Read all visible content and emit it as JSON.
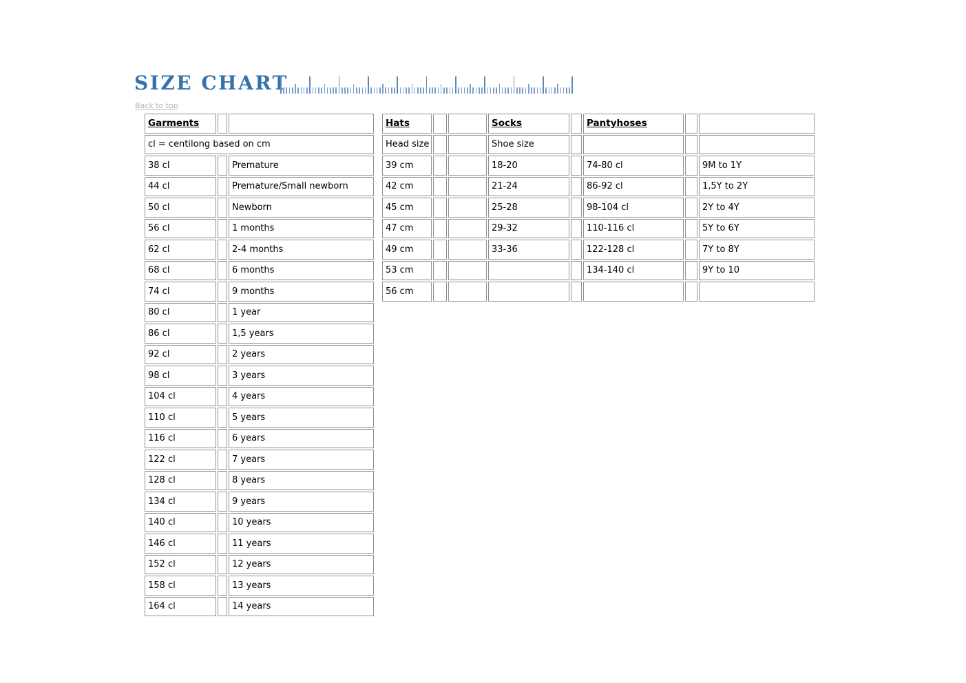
{
  "page": {
    "title": "SIZE CHART",
    "back_link": "Back to top"
  },
  "colors": {
    "title_blue": "#3572ad",
    "ruler_blue": "#7b9ecb",
    "ruler_blue_dark": "#5e87be",
    "table_border_gray": "#919191",
    "link_gray": "#b5b5b5",
    "text_black": "#000000"
  },
  "garments": {
    "header": "Garments",
    "note": "cl = centilong based on cm",
    "rows": [
      {
        "size": "38 cl",
        "label": "Premature"
      },
      {
        "size": "44 cl",
        "label": "Premature/Small newborn"
      },
      {
        "size": "50 cl",
        "label": "Newborn"
      },
      {
        "size": "56 cl",
        "label": "1 months"
      },
      {
        "size": "62 cl",
        "label": "2-4 months"
      },
      {
        "size": "68 cl",
        "label": "6 months"
      },
      {
        "size": "74 cl",
        "label": "9 months"
      },
      {
        "size": "80 cl",
        "label": "1 year"
      },
      {
        "size": "86 cl",
        "label": "1,5 years"
      },
      {
        "size": "92 cl",
        "label": "2 years"
      },
      {
        "size": "98 cl",
        "label": "3 years"
      },
      {
        "size": "104 cl",
        "label": "4 years"
      },
      {
        "size": "110 cl",
        "label": "5 years"
      },
      {
        "size": "116 cl",
        "label": "6 years"
      },
      {
        "size": "122 cl",
        "label": "7 years"
      },
      {
        "size": "128 cl",
        "label": "8 years"
      },
      {
        "size": "134 cl",
        "label": "9 years"
      },
      {
        "size": "140 cl",
        "label": "10 years"
      },
      {
        "size": "146 cl",
        "label": "11 years"
      },
      {
        "size": "152 cl",
        "label": "12 years"
      },
      {
        "size": "158 cl",
        "label": "13 years"
      },
      {
        "size": "164 cl",
        "label": "14 years"
      }
    ]
  },
  "accessories": {
    "hats": {
      "header": "Hats",
      "subheader": "Head size"
    },
    "socks": {
      "header": "Socks",
      "subheader": "Shoe size"
    },
    "pantyhoses": {
      "header": "Pantyhoses",
      "subheader": ""
    },
    "rows": [
      {
        "hats": "39 cm",
        "socks": "18-20",
        "pantyhose": "74-80 cl",
        "age": "9M to 1Y"
      },
      {
        "hats": "42 cm",
        "socks": "21-24",
        "pantyhose": "86-92 cl",
        "age": "1,5Y to 2Y"
      },
      {
        "hats": "45 cm",
        "socks": "25-28",
        "pantyhose": "98-104 cl",
        "age": "2Y to 4Y"
      },
      {
        "hats": "47 cm",
        "socks": "29-32",
        "pantyhose": "110-116 cl",
        "age": "5Y to 6Y"
      },
      {
        "hats": "49 cm",
        "socks": "33-36",
        "pantyhose": "122-128 cl",
        "age": "7Y to 8Y"
      },
      {
        "hats": "53 cm",
        "socks": "",
        "pantyhose": "134-140 cl",
        "age": "9Y to 10"
      },
      {
        "hats": "56 cm",
        "socks": "",
        "pantyhose": "",
        "age": ""
      }
    ]
  }
}
